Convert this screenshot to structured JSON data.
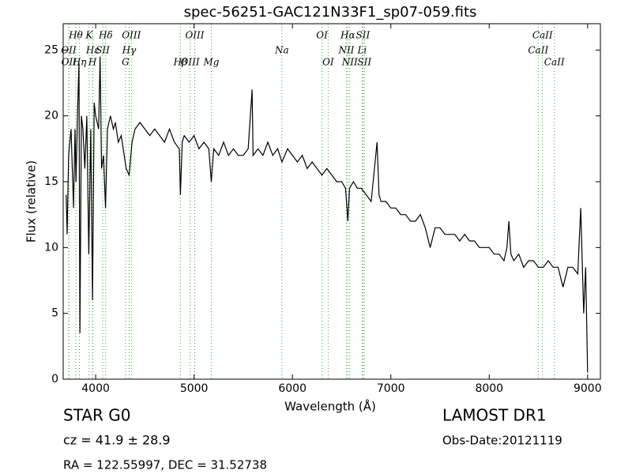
{
  "chart_data": {
    "type": "line",
    "title": "spec-56251-GAC121N33F1_sp07-059.fits",
    "x_label": "Wavelength (Å)",
    "y_label": "Flux (relative)",
    "xlim": [
      3670,
      9130
    ],
    "ylim": [
      0,
      27
    ],
    "xticks": [
      4000,
      5000,
      6000,
      7000,
      8000,
      9000
    ],
    "yticks": [
      0,
      5,
      10,
      15,
      20,
      25
    ],
    "color": "#000000",
    "line_color": "#33aa33",
    "x": [
      3700,
      3710,
      3725,
      3750,
      3775,
      3790,
      3800,
      3815,
      3830,
      3840,
      3855,
      3870,
      3890,
      3910,
      3930,
      3950,
      3968,
      3985,
      4000,
      4030,
      4045,
      4060,
      4080,
      4100,
      4120,
      4150,
      4180,
      4200,
      4230,
      4260,
      4290,
      4310,
      4340,
      4370,
      4400,
      4450,
      4500,
      4550,
      4600,
      4650,
      4700,
      4750,
      4800,
      4850,
      4861,
      4880,
      4900,
      4950,
      5000,
      5050,
      5100,
      5150,
      5175,
      5200,
      5250,
      5300,
      5350,
      5400,
      5450,
      5500,
      5550,
      5590,
      5600,
      5650,
      5700,
      5750,
      5800,
      5850,
      5893,
      5950,
      6000,
      6050,
      6100,
      6150,
      6200,
      6250,
      6300,
      6350,
      6400,
      6450,
      6500,
      6540,
      6563,
      6580,
      6620,
      6660,
      6700,
      6750,
      6800,
      6860,
      6880,
      6900,
      6950,
      7000,
      7050,
      7100,
      7150,
      7200,
      7250,
      7300,
      7350,
      7400,
      7450,
      7500,
      7550,
      7600,
      7650,
      7700,
      7750,
      7800,
      7850,
      7900,
      7950,
      8000,
      8050,
      8100,
      8150,
      8180,
      8200,
      8220,
      8250,
      8300,
      8350,
      8400,
      8450,
      8500,
      8550,
      8600,
      8650,
      8700,
      8750,
      8800,
      8850,
      8900,
      8930,
      8960,
      8980,
      9000
    ],
    "values": [
      14,
      11,
      17,
      19,
      13,
      19,
      15,
      20,
      24,
      3.5,
      20,
      19,
      16,
      20,
      9.5,
      19,
      6,
      21,
      20,
      19,
      24.5,
      16,
      17,
      13,
      19,
      20,
      19,
      19.5,
      18,
      18.5,
      17,
      16,
      15.5,
      18,
      19,
      19.5,
      19,
      18.5,
      19,
      18.5,
      18,
      19,
      18,
      17.5,
      14,
      18,
      18.5,
      18,
      18.5,
      17.5,
      18,
      17.5,
      15,
      17.5,
      17,
      18,
      17,
      17.5,
      17,
      17,
      17.5,
      22,
      17,
      17.5,
      17,
      18,
      17,
      17.5,
      16.5,
      17.5,
      17,
      16.5,
      17,
      16,
      16.5,
      16,
      15.5,
      16,
      15.5,
      15,
      15,
      14.5,
      12,
      14.5,
      15,
      14.5,
      14.5,
      14,
      13.5,
      18,
      14,
      13.5,
      13.5,
      13,
      13,
      12.5,
      12.5,
      12,
      12,
      12.5,
      11.5,
      10,
      11.5,
      11.5,
      11,
      11,
      11,
      10.5,
      11,
      10.5,
      10.5,
      10,
      10,
      10,
      9.5,
      9.5,
      9,
      10,
      12,
      9.5,
      9,
      9.5,
      8.5,
      9,
      9,
      8.5,
      8.5,
      9,
      8.5,
      8.5,
      7,
      8.5,
      8.5,
      8,
      13,
      5,
      8.5,
      0.5
    ],
    "lines": [
      {
        "label": "OII",
        "wavelength": 3726
      },
      {
        "label": "Hθ",
        "wavelength": 3798
      },
      {
        "label": "OII",
        "wavelength": 3729
      },
      {
        "label": "Hη",
        "wavelength": 3835
      },
      {
        "label": "Hε",
        "wavelength": 3970
      },
      {
        "label": "K",
        "wavelength": 3934
      },
      {
        "label": "H",
        "wavelength": 3968
      },
      {
        "label": "SII",
        "wavelength": 4072
      },
      {
        "label": "Hδ",
        "wavelength": 4102
      },
      {
        "label": "G",
        "wavelength": 4304
      },
      {
        "label": "Hγ",
        "wavelength": 4340
      },
      {
        "label": "OIII",
        "wavelength": 4363
      },
      {
        "label": "Hβ",
        "wavelength": 4861
      },
      {
        "label": "OIII",
        "wavelength": 4959
      },
      {
        "label": "OIII",
        "wavelength": 5007
      },
      {
        "label": "Mg",
        "wavelength": 5175
      },
      {
        "label": "Na",
        "wavelength": 5893
      },
      {
        "label": "OI",
        "wavelength": 6300
      },
      {
        "label": "OI",
        "wavelength": 6363
      },
      {
        "label": "NII",
        "wavelength": 6548
      },
      {
        "label": "Hα",
        "wavelength": 6563
      },
      {
        "label": "NII",
        "wavelength": 6583
      },
      {
        "label": "Li",
        "wavelength": 6708
      },
      {
        "label": "SII",
        "wavelength": 6716
      },
      {
        "label": "SII",
        "wavelength": 6731
      },
      {
        "label": "CaII",
        "wavelength": 8498
      },
      {
        "label": "CaII",
        "wavelength": 8542
      },
      {
        "label": "CaII",
        "wavelength": 8662
      }
    ],
    "annotations": [
      "STAR   G0",
      "LAMOST DR1",
      "cz = 41.9 ± 28.9",
      "Obs-Date:20121119",
      "RA = 122.55997, DEC = 31.52738"
    ]
  }
}
